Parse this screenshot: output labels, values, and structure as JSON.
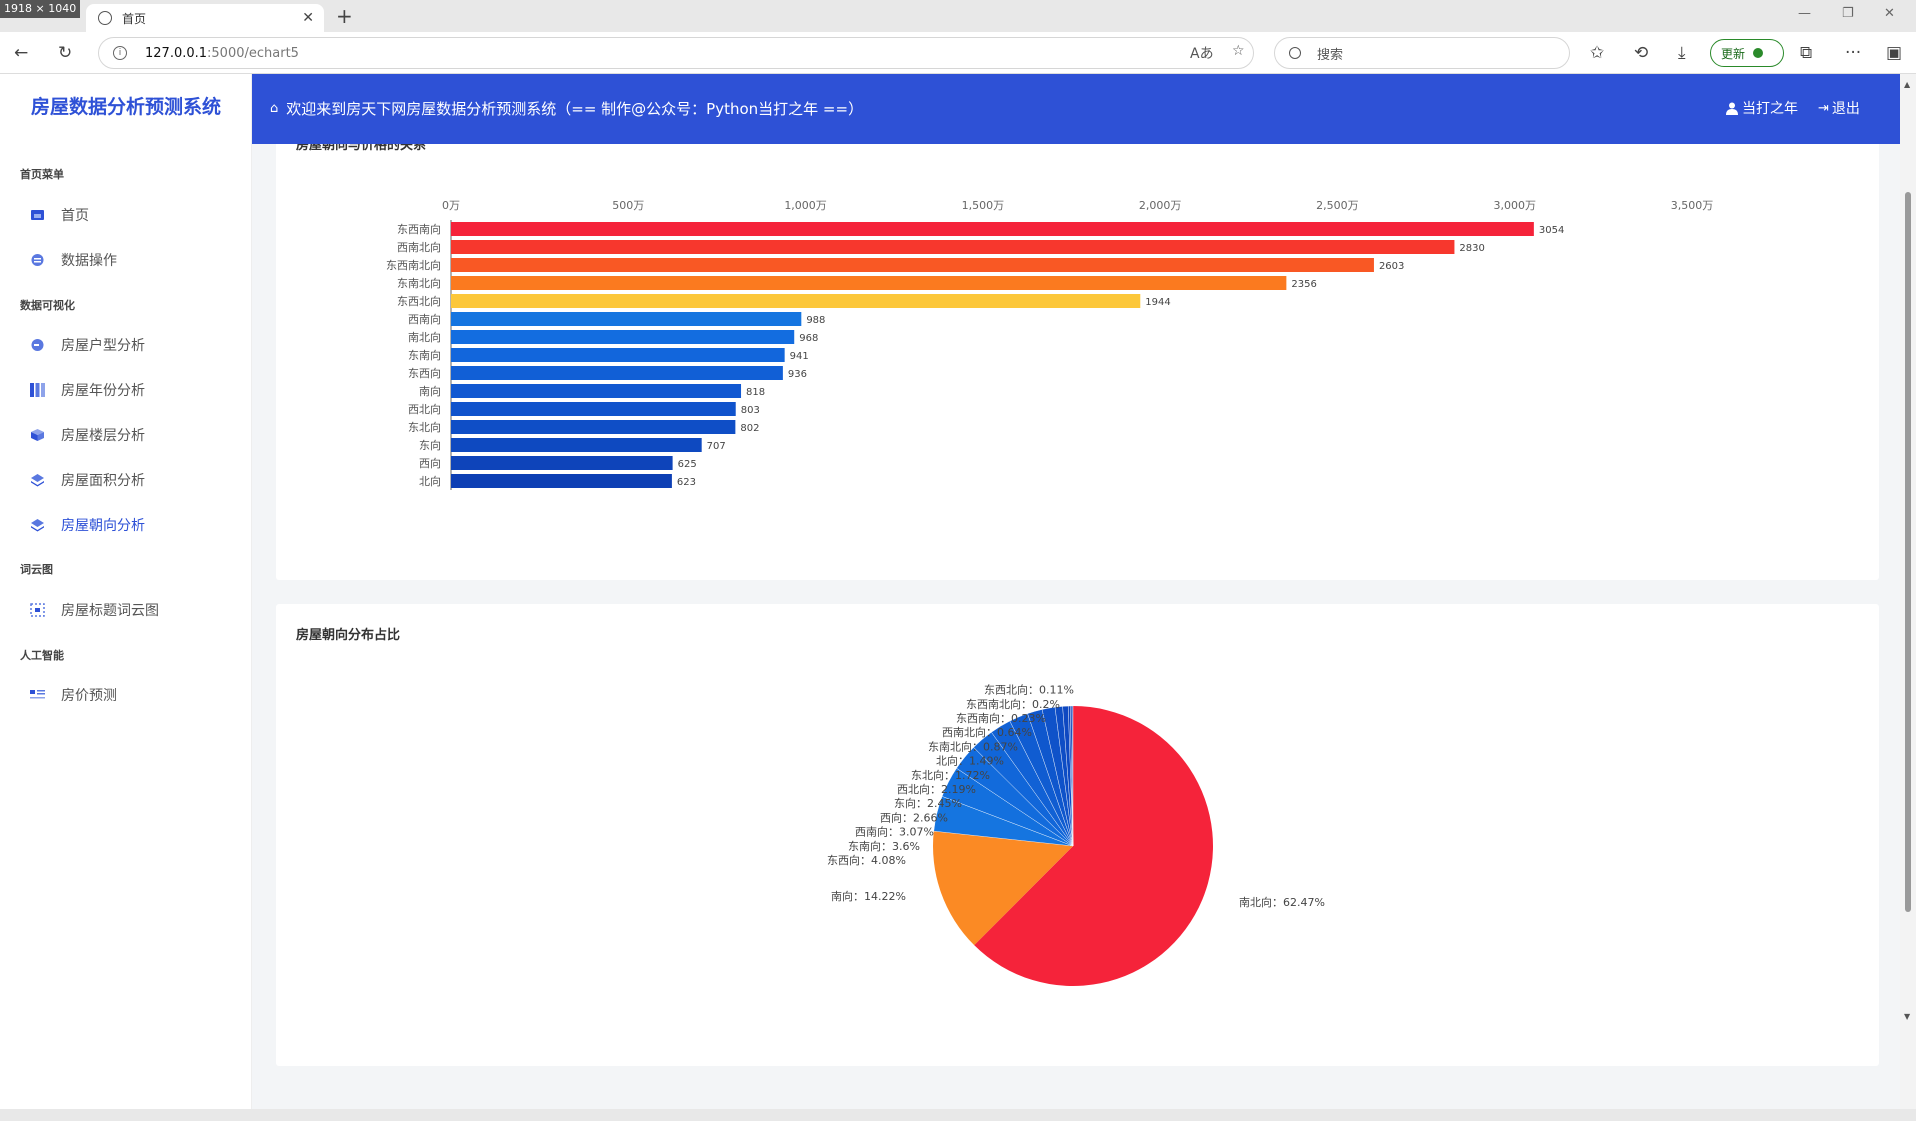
{
  "browser": {
    "window_size_badge": "1918 × 1040",
    "tab_title": "首页",
    "url_host": "127.0.0.1",
    "url_path": ":5000/echart5",
    "search_placeholder": "搜索",
    "update_label": "更新"
  },
  "app": {
    "logo": "房屋数据分析预测系统",
    "welcome": "欢迎来到房天下网房屋数据分析预测系统（== 制作@公众号：Python当打之年 ==）",
    "user_label": "当打之年",
    "logout_label": "退出"
  },
  "sidebar": {
    "sections": [
      {
        "title": "首页菜单",
        "items": [
          {
            "label": "首页",
            "icon": "home-icon"
          },
          {
            "label": "数据操作",
            "icon": "database-icon"
          }
        ]
      },
      {
        "title": "数据可视化",
        "items": [
          {
            "label": "房屋户型分析",
            "icon": "pie-icon"
          },
          {
            "label": "房屋年份分析",
            "icon": "columns-icon"
          },
          {
            "label": "房屋楼层分析",
            "icon": "cube-icon"
          },
          {
            "label": "房屋面积分析",
            "icon": "layers-icon"
          },
          {
            "label": "房屋朝向分析",
            "icon": "layers-icon",
            "active": true
          }
        ]
      },
      {
        "title": "词云图",
        "items": [
          {
            "label": "房屋标题词云图",
            "icon": "cloud-icon"
          }
        ]
      },
      {
        "title": "人工智能",
        "items": [
          {
            "label": "房价预测",
            "icon": "list-icon"
          }
        ]
      }
    ]
  },
  "cards": {
    "bar_title": "房屋朝向与价格的关系",
    "pie_title": "房屋朝向分布占比"
  },
  "chart_data": [
    {
      "type": "bar",
      "orientation": "horizontal",
      "title": "房屋朝向与价格的关系",
      "categories": [
        "东西南向",
        "西南北向",
        "东西南北向",
        "东南北向",
        "东西北向",
        "西南向",
        "南北向",
        "东南向",
        "东西向",
        "南向",
        "西北向",
        "东北向",
        "东向",
        "西向",
        "北向"
      ],
      "values": [
        3054,
        2830,
        2603,
        2356,
        1944,
        988,
        968,
        941,
        936,
        818,
        803,
        802,
        707,
        625,
        623
      ],
      "x_ticks": [
        "0万",
        "500万",
        "1,000万",
        "1,500万",
        "2,000万",
        "2,500万",
        "3,000万",
        "3,500万"
      ],
      "xlim": [
        0,
        3500
      ],
      "colors": [
        "#f5233a",
        "#f7372d",
        "#f95824",
        "#fb7a1f",
        "#fcc73a",
        "#1575e0",
        "#136de0",
        "#1266dc",
        "#115fd6",
        "#1158d1",
        "#1053cc",
        "#0f4ec6",
        "#0e49c0",
        "#0e44ba",
        "#0d3fb4"
      ]
    },
    {
      "type": "pie",
      "title": "房屋朝向分布占比",
      "slices": [
        {
          "label": "南北向",
          "value": 62.47,
          "text": "南北向：62.47%",
          "color": "#f5233a"
        },
        {
          "label": "南向",
          "value": 14.22,
          "text": "南向：14.22%",
          "color": "#fb8a24"
        },
        {
          "label": "东西向",
          "value": 4.08,
          "text": "东西向：4.08%",
          "color": "#1575e0"
        },
        {
          "label": "东南向",
          "value": 3.6,
          "text": "东南向：3.6%",
          "color": "#1370de"
        },
        {
          "label": "西南向",
          "value": 3.07,
          "text": "西南向：3.07%",
          "color": "#126bdc"
        },
        {
          "label": "西向",
          "value": 2.66,
          "text": "西向：2.66%",
          "color": "#1166d9"
        },
        {
          "label": "东向",
          "value": 2.45,
          "text": "东向：2.45%",
          "color": "#1161d5"
        },
        {
          "label": "西北向",
          "value": 2.19,
          "text": "西北向：2.19%",
          "color": "#105cd1"
        },
        {
          "label": "东北向",
          "value": 1.72,
          "text": "东北向：1.72%",
          "color": "#0f57cd"
        },
        {
          "label": "北向",
          "value": 1.49,
          "text": "北向：1.49%",
          "color": "#0f52c9"
        },
        {
          "label": "东南北向",
          "value": 0.87,
          "text": "东南北向：0.87%",
          "color": "#0e4dc5"
        },
        {
          "label": "西南北向",
          "value": 0.64,
          "text": "西南北向：0.64%",
          "color": "#0e48c1"
        },
        {
          "label": "东西南向",
          "value": 0.23,
          "text": "东西南向：0.23%",
          "color": "#0d44bd"
        },
        {
          "label": "东西南北向",
          "value": 0.2,
          "text": "东西南北向：0.2%",
          "color": "#0d40b9"
        },
        {
          "label": "东西北向",
          "value": 0.11,
          "text": "东西北向：0.11%",
          "color": "#0c3cb5"
        }
      ]
    }
  ]
}
